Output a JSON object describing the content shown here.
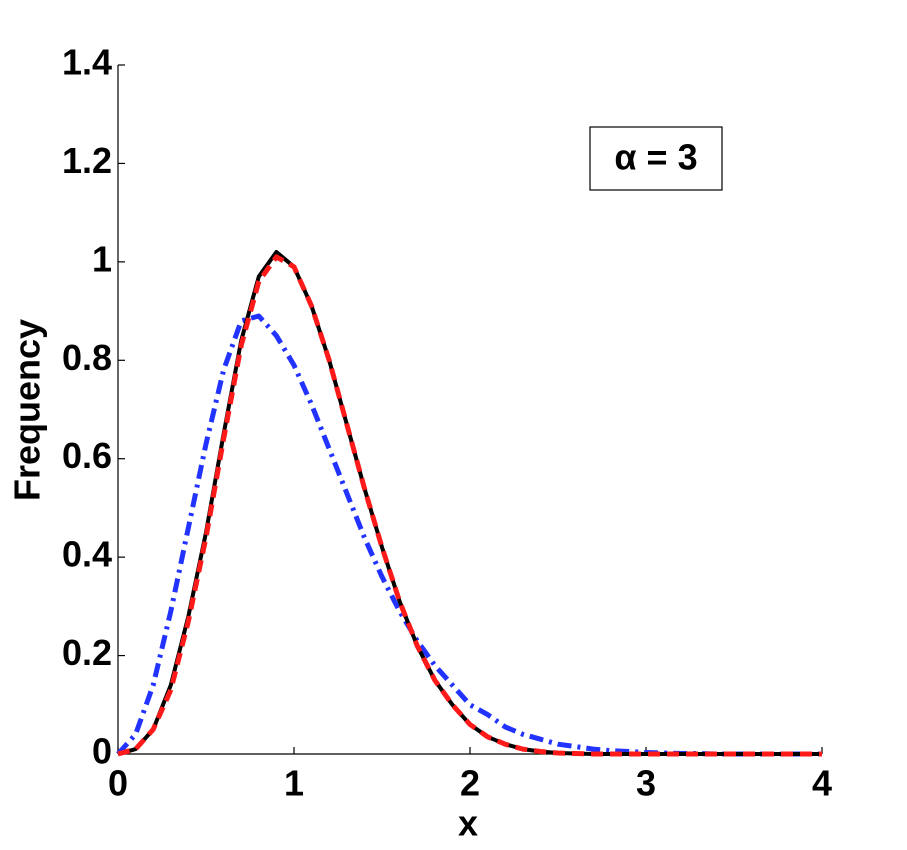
{
  "chart_data": {
    "type": "line",
    "x": [
      0,
      0.1,
      0.2,
      0.3,
      0.4,
      0.5,
      0.6,
      0.7,
      0.8,
      0.9,
      1,
      1.1,
      1.2,
      1.3,
      1.4,
      1.5,
      1.6,
      1.7,
      1.8,
      1.9,
      2,
      2.1,
      2.2,
      2.3,
      2.4,
      2.5,
      2.6,
      2.7,
      2.8,
      2.9,
      3,
      3.1,
      3.2,
      3.3,
      3.4,
      3.5,
      3.6,
      3.7,
      3.8,
      3.9,
      4
    ],
    "series": [
      {
        "color": "#2233ff",
        "style": "dashdot",
        "values": [
          0,
          0.04,
          0.14,
          0.29,
          0.46,
          0.63,
          0.78,
          0.88,
          0.89,
          0.85,
          0.79,
          0.71,
          0.62,
          0.53,
          0.44,
          0.36,
          0.29,
          0.23,
          0.18,
          0.14,
          0.1,
          0.08,
          0.055,
          0.04,
          0.03,
          0.02,
          0.015,
          0.01,
          0.007,
          0.005,
          0.003,
          0.002,
          0.001,
          0.001,
          0,
          0,
          0,
          0,
          0,
          0,
          0
        ]
      },
      {
        "color": "#000000",
        "style": "solid",
        "values": [
          0,
          0.01,
          0.05,
          0.14,
          0.28,
          0.45,
          0.65,
          0.84,
          0.97,
          1.02,
          0.99,
          0.91,
          0.8,
          0.67,
          0.54,
          0.42,
          0.31,
          0.22,
          0.15,
          0.1,
          0.06,
          0.035,
          0.02,
          0.01,
          0.005,
          0.002,
          0.001,
          0,
          0,
          0,
          0,
          0,
          0,
          0,
          0,
          0,
          0,
          0,
          0,
          0,
          0
        ]
      },
      {
        "color": "#ff1a1a",
        "style": "dashed",
        "values": [
          0,
          0.01,
          0.05,
          0.13,
          0.27,
          0.44,
          0.64,
          0.83,
          0.96,
          1.01,
          0.99,
          0.91,
          0.8,
          0.67,
          0.54,
          0.42,
          0.31,
          0.22,
          0.15,
          0.1,
          0.06,
          0.035,
          0.02,
          0.01,
          0.005,
          0.002,
          0.001,
          0,
          0,
          0,
          0,
          0,
          0,
          0,
          0,
          0,
          0,
          0,
          0,
          0,
          0
        ]
      }
    ],
    "xlabel": "x",
    "ylabel": "Frequency",
    "annotation": "α = 3",
    "xlim": [
      0,
      4
    ],
    "xticks": [
      0,
      1,
      2,
      3,
      4
    ],
    "ylim": [
      0,
      1.4
    ],
    "yticks": [
      0,
      0.2,
      0.4,
      0.6,
      0.8,
      1,
      1.2,
      1.4
    ]
  }
}
